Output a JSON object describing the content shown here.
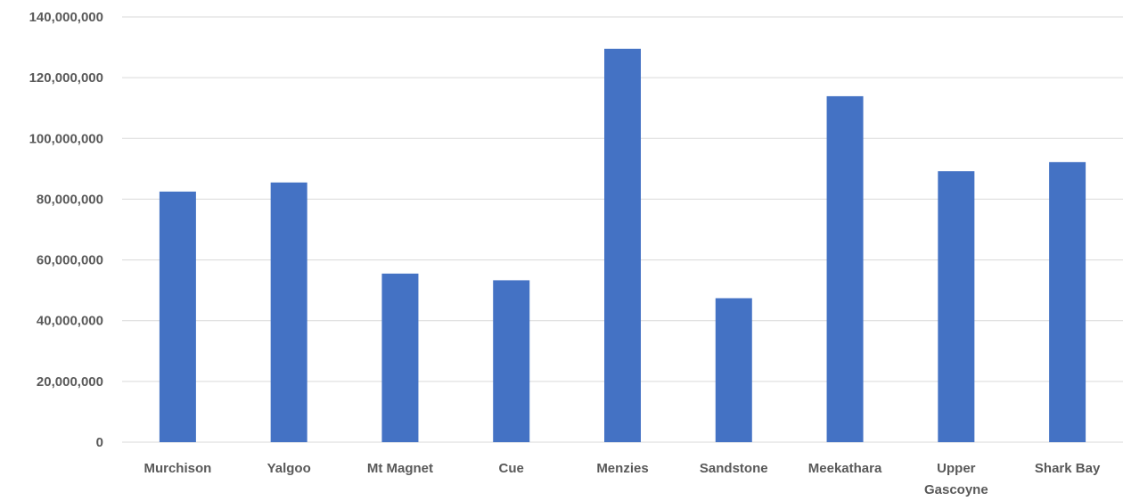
{
  "chart_data": {
    "type": "bar",
    "categories": [
      [
        "Murchison"
      ],
      [
        "Yalgoo"
      ],
      [
        "Mt Magnet"
      ],
      [
        "Cue"
      ],
      [
        "Menzies"
      ],
      [
        "Sandstone"
      ],
      [
        "Meekathara"
      ],
      [
        "Upper",
        "Gascoyne"
      ],
      [
        "Shark Bay"
      ]
    ],
    "values": [
      82500000,
      85500000,
      55500000,
      53300000,
      129500000,
      47400000,
      113900000,
      89200000,
      92200000
    ],
    "ylim": [
      0,
      140000000
    ],
    "yticks": [
      0,
      20000000,
      40000000,
      60000000,
      80000000,
      100000000,
      120000000,
      140000000
    ],
    "ytick_labels": [
      "0",
      "20,000,000",
      "40,000,000",
      "60,000,000",
      "80,000,000",
      "100,000,000",
      "120,000,000",
      "140,000,000"
    ],
    "grid": true,
    "bar_color": "#4472c4",
    "title": "",
    "xlabel": "",
    "ylabel": ""
  }
}
